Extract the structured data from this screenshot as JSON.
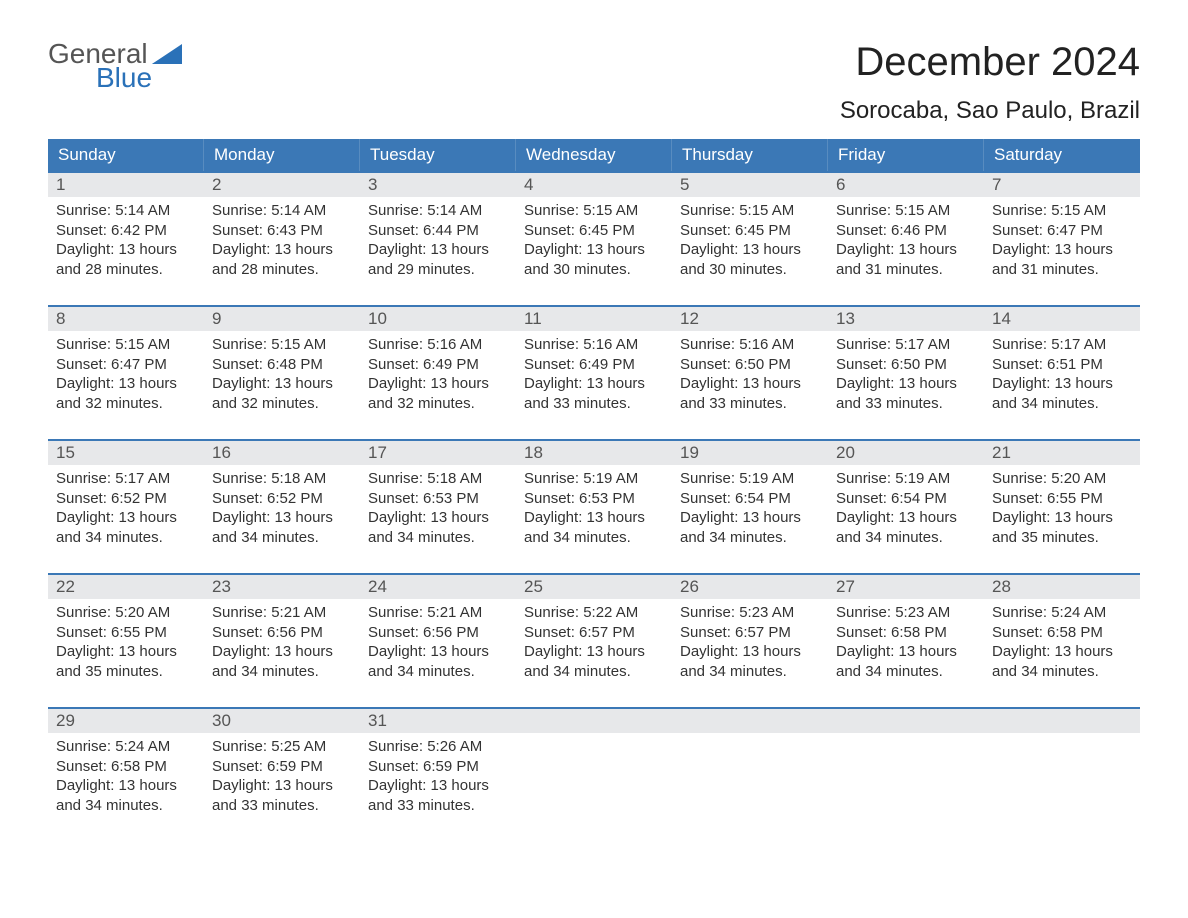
{
  "logo": {
    "text1": "General",
    "text2": "Blue",
    "flag_color": "#2a71b8"
  },
  "title": "December 2024",
  "location": "Sorocaba, Sao Paulo, Brazil",
  "colors": {
    "header_bg": "#3b78b6",
    "header_text": "#ffffff",
    "daynum_bg": "#e7e8ea",
    "daynum_text": "#555555",
    "body_text": "#333333",
    "week_border": "#3b78b6",
    "page_bg": "#ffffff"
  },
  "typography": {
    "title_fontsize": 40,
    "location_fontsize": 24,
    "dayheader_fontsize": 17,
    "daynum_fontsize": 17,
    "cell_fontsize": 15,
    "logo_fontsize": 28
  },
  "day_headers": [
    "Sunday",
    "Monday",
    "Tuesday",
    "Wednesday",
    "Thursday",
    "Friday",
    "Saturday"
  ],
  "labels": {
    "sunrise": "Sunrise:",
    "sunset": "Sunset:",
    "daylight": "Daylight:"
  },
  "weeks": [
    [
      {
        "n": "1",
        "sunrise": "5:14 AM",
        "sunset": "6:42 PM",
        "daylight": "13 hours and 28 minutes."
      },
      {
        "n": "2",
        "sunrise": "5:14 AM",
        "sunset": "6:43 PM",
        "daylight": "13 hours and 28 minutes."
      },
      {
        "n": "3",
        "sunrise": "5:14 AM",
        "sunset": "6:44 PM",
        "daylight": "13 hours and 29 minutes."
      },
      {
        "n": "4",
        "sunrise": "5:15 AM",
        "sunset": "6:45 PM",
        "daylight": "13 hours and 30 minutes."
      },
      {
        "n": "5",
        "sunrise": "5:15 AM",
        "sunset": "6:45 PM",
        "daylight": "13 hours and 30 minutes."
      },
      {
        "n": "6",
        "sunrise": "5:15 AM",
        "sunset": "6:46 PM",
        "daylight": "13 hours and 31 minutes."
      },
      {
        "n": "7",
        "sunrise": "5:15 AM",
        "sunset": "6:47 PM",
        "daylight": "13 hours and 31 minutes."
      }
    ],
    [
      {
        "n": "8",
        "sunrise": "5:15 AM",
        "sunset": "6:47 PM",
        "daylight": "13 hours and 32 minutes."
      },
      {
        "n": "9",
        "sunrise": "5:15 AM",
        "sunset": "6:48 PM",
        "daylight": "13 hours and 32 minutes."
      },
      {
        "n": "10",
        "sunrise": "5:16 AM",
        "sunset": "6:49 PM",
        "daylight": "13 hours and 32 minutes."
      },
      {
        "n": "11",
        "sunrise": "5:16 AM",
        "sunset": "6:49 PM",
        "daylight": "13 hours and 33 minutes."
      },
      {
        "n": "12",
        "sunrise": "5:16 AM",
        "sunset": "6:50 PM",
        "daylight": "13 hours and 33 minutes."
      },
      {
        "n": "13",
        "sunrise": "5:17 AM",
        "sunset": "6:50 PM",
        "daylight": "13 hours and 33 minutes."
      },
      {
        "n": "14",
        "sunrise": "5:17 AM",
        "sunset": "6:51 PM",
        "daylight": "13 hours and 34 minutes."
      }
    ],
    [
      {
        "n": "15",
        "sunrise": "5:17 AM",
        "sunset": "6:52 PM",
        "daylight": "13 hours and 34 minutes."
      },
      {
        "n": "16",
        "sunrise": "5:18 AM",
        "sunset": "6:52 PM",
        "daylight": "13 hours and 34 minutes."
      },
      {
        "n": "17",
        "sunrise": "5:18 AM",
        "sunset": "6:53 PM",
        "daylight": "13 hours and 34 minutes."
      },
      {
        "n": "18",
        "sunrise": "5:19 AM",
        "sunset": "6:53 PM",
        "daylight": "13 hours and 34 minutes."
      },
      {
        "n": "19",
        "sunrise": "5:19 AM",
        "sunset": "6:54 PM",
        "daylight": "13 hours and 34 minutes."
      },
      {
        "n": "20",
        "sunrise": "5:19 AM",
        "sunset": "6:54 PM",
        "daylight": "13 hours and 34 minutes."
      },
      {
        "n": "21",
        "sunrise": "5:20 AM",
        "sunset": "6:55 PM",
        "daylight": "13 hours and 35 minutes."
      }
    ],
    [
      {
        "n": "22",
        "sunrise": "5:20 AM",
        "sunset": "6:55 PM",
        "daylight": "13 hours and 35 minutes."
      },
      {
        "n": "23",
        "sunrise": "5:21 AM",
        "sunset": "6:56 PM",
        "daylight": "13 hours and 34 minutes."
      },
      {
        "n": "24",
        "sunrise": "5:21 AM",
        "sunset": "6:56 PM",
        "daylight": "13 hours and 34 minutes."
      },
      {
        "n": "25",
        "sunrise": "5:22 AM",
        "sunset": "6:57 PM",
        "daylight": "13 hours and 34 minutes."
      },
      {
        "n": "26",
        "sunrise": "5:23 AM",
        "sunset": "6:57 PM",
        "daylight": "13 hours and 34 minutes."
      },
      {
        "n": "27",
        "sunrise": "5:23 AM",
        "sunset": "6:58 PM",
        "daylight": "13 hours and 34 minutes."
      },
      {
        "n": "28",
        "sunrise": "5:24 AM",
        "sunset": "6:58 PM",
        "daylight": "13 hours and 34 minutes."
      }
    ],
    [
      {
        "n": "29",
        "sunrise": "5:24 AM",
        "sunset": "6:58 PM",
        "daylight": "13 hours and 34 minutes."
      },
      {
        "n": "30",
        "sunrise": "5:25 AM",
        "sunset": "6:59 PM",
        "daylight": "13 hours and 33 minutes."
      },
      {
        "n": "31",
        "sunrise": "5:26 AM",
        "sunset": "6:59 PM",
        "daylight": "13 hours and 33 minutes."
      },
      null,
      null,
      null,
      null
    ]
  ]
}
